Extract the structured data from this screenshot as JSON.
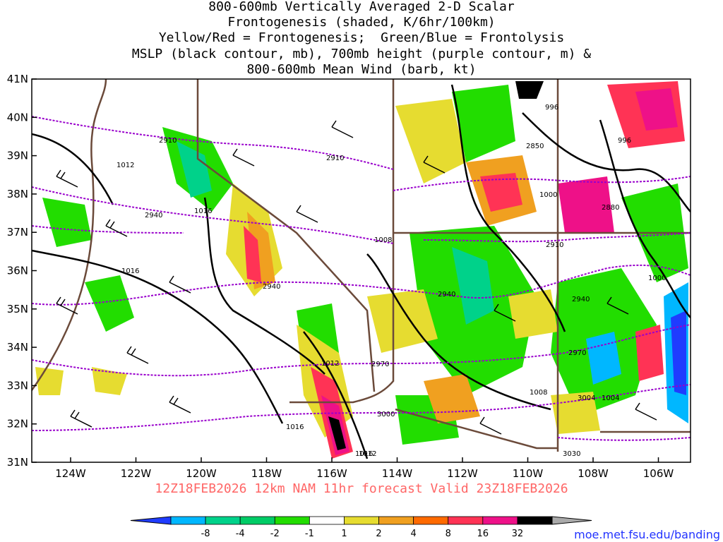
{
  "title_lines": [
    "800-600mb Vertically Averaged 2-D Scalar",
    "Frontogenesis (shaded, K/6hr/100km)",
    "Yellow/Red = Frontogenesis;  Green/Blue = Frontolysis",
    "MSLP (black contour, mb), 700mb height (purple contour, m) &",
    "800-600mb Mean Wind (barb, kt)"
  ],
  "valid_line": "12Z18FEB2026 12km NAM 11hr forecast Valid 23Z18FEB2026",
  "source_url": "moe.met.fsu.edu/banding",
  "lat_labels": [
    "41N",
    "40N",
    "39N",
    "38N",
    "37N",
    "36N",
    "35N",
    "34N",
    "33N",
    "32N",
    "31N"
  ],
  "lon_labels": [
    "124W",
    "122W",
    "120W",
    "118W",
    "116W",
    "114W",
    "112W",
    "110W",
    "108W",
    "106W"
  ],
  "mslp_labels": [
    "1012",
    "1016",
    "1016",
    "1008",
    "1016",
    "1012",
    "1016",
    "1012",
    "1008",
    "996",
    "996",
    "1000",
    "1000",
    "1004"
  ],
  "height_labels": [
    "2910",
    "2910",
    "2940",
    "2940",
    "2940",
    "2970",
    "3000",
    "2850",
    "2880",
    "2910",
    "2940",
    "2970",
    "3004",
    "3030"
  ],
  "colorbar": {
    "labels": [
      "-8",
      "-4",
      "-2",
      "-1",
      "1",
      "2",
      "4",
      "8",
      "16",
      "32"
    ],
    "colors": [
      "#1f3cff",
      "#00b7ff",
      "#00d28a",
      "#00cc66",
      "#22dd00",
      "#ffffff",
      "#e6dc30",
      "#f0a020",
      "#ff6a00",
      "#ff3355",
      "#ee1188",
      "#000000",
      "#aaaaaa"
    ]
  },
  "legend_colors": {
    "mslp": "#000000",
    "height": "#9900cc",
    "state_borders": "#6b4a3a",
    "barbs": "#000000"
  }
}
